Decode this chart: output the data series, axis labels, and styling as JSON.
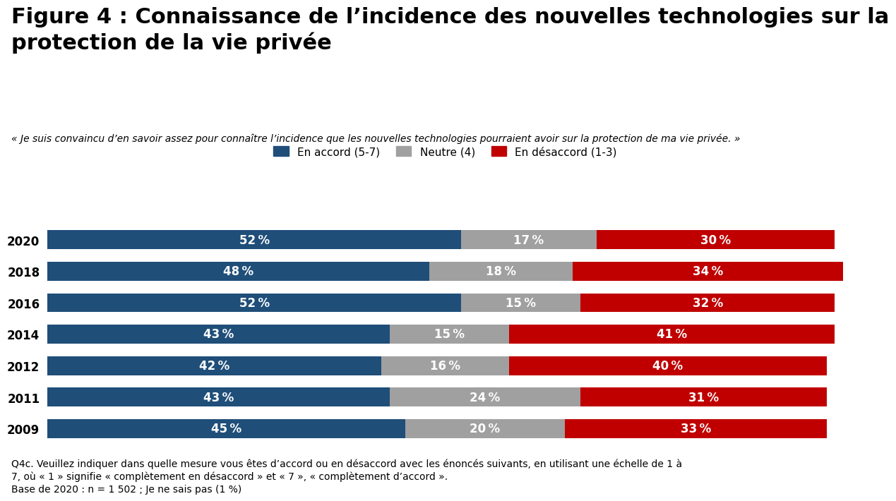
{
  "title": "Figure 4 : Connaissance de l’incidence des nouvelles technologies sur la\nprotection de la vie privée",
  "subtitle": "« Je suis convaincu d’en savoir assez pour connaître l’incidence que les nouvelles technologies pourraient avoir sur la protection de ma vie privée. »",
  "legend_labels": [
    "En accord (5-7)",
    "Neutre (4)",
    "En désaccord (1-3)"
  ],
  "colors": [
    "#1F4E79",
    "#A0A0A0",
    "#C00000"
  ],
  "years": [
    "2009",
    "2011",
    "2012",
    "2014",
    "2016",
    "2018",
    "2020"
  ],
  "accord": [
    45,
    43,
    42,
    43,
    52,
    48,
    52
  ],
  "neutre": [
    20,
    24,
    16,
    15,
    15,
    18,
    17
  ],
  "desaccord": [
    33,
    31,
    40,
    41,
    32,
    34,
    30
  ],
  "footnote1": "Q4c. Veuillez indiquer dans quelle mesure vous êtes d’accord ou en désaccord avec les énoncés suivants, en utilisant une échelle de 1 à",
  "footnote2": "7, où « 1 » signifie « complètement en désaccord » et « 7 », « complètement d’accord ».",
  "footnote3": "Base de 2020 : n = 1 502 ; Je ne sais pas (1 %)",
  "background_color": "#FFFFFF",
  "bar_height": 0.6,
  "title_fontsize": 22,
  "subtitle_fontsize": 10,
  "label_fontsize": 12,
  "year_fontsize": 12,
  "legend_fontsize": 11,
  "footnote_fontsize": 10
}
